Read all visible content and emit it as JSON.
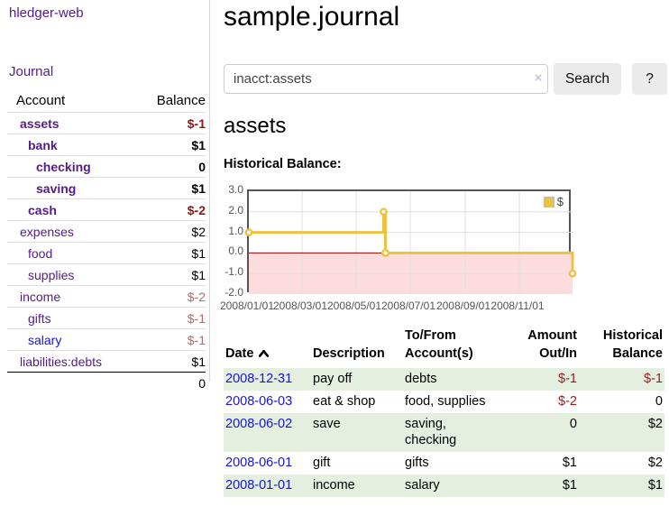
{
  "app": {
    "brand": "hledger-web",
    "nav": {
      "journal": "Journal"
    }
  },
  "sidebar": {
    "header": {
      "account": "Account",
      "balance": "Balance"
    },
    "accounts": [
      {
        "name": "assets",
        "indent": 0,
        "bold": true,
        "link_color": "purple",
        "balance": "$-1",
        "balance_tone": "neg-strong"
      },
      {
        "name": "bank",
        "indent": 1,
        "bold": true,
        "link_color": "purple",
        "balance": "$1",
        "balance_tone": "pos"
      },
      {
        "name": "checking",
        "indent": 2,
        "bold": true,
        "link_color": "purple",
        "balance": "0",
        "balance_tone": "pos"
      },
      {
        "name": "saving",
        "indent": 2,
        "bold": true,
        "link_color": "purple",
        "balance": "$1",
        "balance_tone": "pos"
      },
      {
        "name": "cash",
        "indent": 1,
        "bold": true,
        "link_color": "purple",
        "balance": "$-2",
        "balance_tone": "neg-strong"
      },
      {
        "name": "expenses",
        "indent": 0,
        "bold": false,
        "link_color": "purple",
        "balance": "$2",
        "balance_tone": "pos"
      },
      {
        "name": "food",
        "indent": 1,
        "bold": false,
        "link_color": "purple",
        "balance": "$1",
        "balance_tone": "pos"
      },
      {
        "name": "supplies",
        "indent": 1,
        "bold": false,
        "link_color": "purple",
        "balance": "$1",
        "balance_tone": "pos"
      },
      {
        "name": "income",
        "indent": 0,
        "bold": false,
        "link_color": "purple",
        "balance": "$-2",
        "balance_tone": "neg-soft"
      },
      {
        "name": "gifts",
        "indent": 1,
        "bold": false,
        "link_color": "purple",
        "balance": "$-1",
        "balance_tone": "neg-soft"
      },
      {
        "name": "salary",
        "indent": 1,
        "bold": false,
        "link_color": "blue",
        "balance": "$-1",
        "balance_tone": "neg-soft"
      },
      {
        "name": "liabilities:debts",
        "indent": 0,
        "bold": false,
        "link_color": "purple",
        "balance": "$1",
        "balance_tone": "pos"
      }
    ],
    "total": "0"
  },
  "main": {
    "title": "sample.journal",
    "search": {
      "value": "inacct:assets",
      "clear": "×",
      "search_button": "Search",
      "help_button": "?"
    },
    "heading": "assets",
    "chart_title": "Historical Balance:"
  },
  "chart_data": {
    "type": "line",
    "step": true,
    "title": "Historical Balance",
    "series": [
      {
        "name": "$",
        "color": "#edc240",
        "x": [
          "2008-01-01",
          "2008-06-01",
          "2008-06-03",
          "2008-12-31"
        ],
        "values": [
          1,
          2,
          0,
          -1
        ]
      }
    ],
    "x_range": [
      "2008-01-01",
      "2008-12-31"
    ],
    "ylim": [
      -2,
      3
    ],
    "yticks": [
      "3.0",
      "2.0",
      "1.0",
      "0.0",
      "-1.0",
      "-2.0"
    ],
    "xticks": [
      "2008/01/01",
      "2008/03/01",
      "2008/05/01",
      "2008/07/01",
      "2008/09/01",
      "2008/11/01"
    ],
    "legend": {
      "label": "$",
      "color": "#edc240",
      "position": "top-right"
    },
    "grid": true,
    "negative_region_color": "#fcdcdc",
    "zero_line_color": "#990000"
  },
  "register": {
    "headers": {
      "date": "Date",
      "description": "Description",
      "accounts": "To/From Account(s)",
      "amount": "Amount Out/In",
      "balance": "Historical Balance"
    },
    "rows": [
      {
        "date": "2008-12-31",
        "description": "pay off",
        "accounts": "debts",
        "amount": "$-1",
        "amount_tone": "neg",
        "balance": "$-1",
        "balance_tone": "neg"
      },
      {
        "date": "2008-06-03",
        "description": "eat & shop",
        "accounts": "food, supplies",
        "amount": "$-2",
        "amount_tone": "neg",
        "balance": "0",
        "balance_tone": "pos"
      },
      {
        "date": "2008-06-02",
        "description": "save",
        "accounts": "saving, checking",
        "amount": "0",
        "amount_tone": "pos",
        "balance": "$2",
        "balance_tone": "pos"
      },
      {
        "date": "2008-06-01",
        "description": "gift",
        "accounts": "gifts",
        "amount": "$1",
        "amount_tone": "pos",
        "balance": "$2",
        "balance_tone": "pos"
      },
      {
        "date": "2008-01-01",
        "description": "income",
        "accounts": "salary",
        "amount": "$1",
        "amount_tone": "pos",
        "balance": "$1",
        "balance_tone": "pos"
      }
    ]
  },
  "colors": {
    "link_purple": "#551a8b",
    "link_blue": "#1414dd",
    "negative_strong": "#8c1616",
    "negative_soft": "#b46a6a",
    "register_negative": "#941f1f",
    "row_green": "#e4efe0",
    "series_yellow": "#edc240",
    "chart_border": "#545454"
  }
}
